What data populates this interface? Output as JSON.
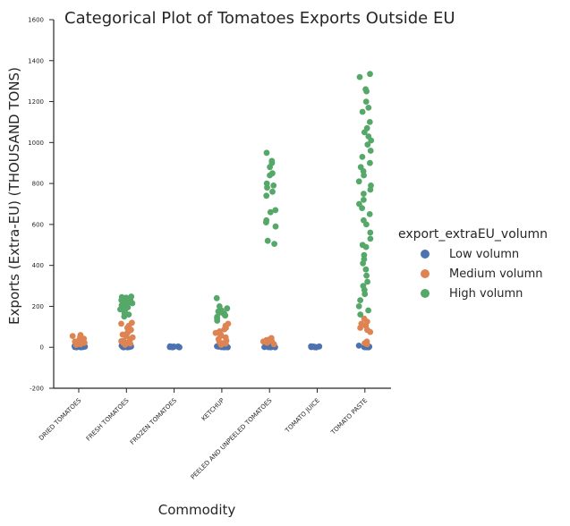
{
  "chart_data": {
    "type": "scatter",
    "title": "Categorical Plot of Tomatoes Exports Outside EU",
    "xlabel": "Commodity",
    "ylabel": "Exports (Extra-EU) (THOUSAND TONS)",
    "ylim": [
      -200,
      1600
    ],
    "yticks": [
      "-200",
      "0",
      "200",
      "400",
      "600",
      "800",
      "1000",
      "1200",
      "1400",
      "1600"
    ],
    "categories": [
      "DRIED TOMATOES",
      "FRESH TOMATOES",
      "FROZEN TOMATOES",
      "KETCHUP",
      "PEELED AND UNPEELED TOMATOES",
      "TOMATO JUICE",
      "TOMATO PASTE"
    ],
    "grid": false,
    "legend_position": "right",
    "legend_title": "export_extraEU_volumn",
    "series": [
      {
        "name": "Low volumn",
        "color": "#4c72b0",
        "points": [
          [
            "DRIED TOMATOES",
            0
          ],
          [
            "DRIED TOMATOES",
            1
          ],
          [
            "DRIED TOMATOES",
            2
          ],
          [
            "DRIED TOMATOES",
            3
          ],
          [
            "DRIED TOMATOES",
            4
          ],
          [
            "DRIED TOMATOES",
            5
          ],
          [
            "DRIED TOMATOES",
            6
          ],
          [
            "DRIED TOMATOES",
            8
          ],
          [
            "DRIED TOMATOES",
            10
          ],
          [
            "DRIED TOMATOES",
            1
          ],
          [
            "DRIED TOMATOES",
            2
          ],
          [
            "DRIED TOMATOES",
            0
          ],
          [
            "DRIED TOMATOES",
            3
          ],
          [
            "DRIED TOMATOES",
            1
          ],
          [
            "FRESH TOMATOES",
            0
          ],
          [
            "FRESH TOMATOES",
            1
          ],
          [
            "FRESH TOMATOES",
            2
          ],
          [
            "FRESH TOMATOES",
            3
          ],
          [
            "FRESH TOMATOES",
            4
          ],
          [
            "FRESH TOMATOES",
            6
          ],
          [
            "FRESH TOMATOES",
            8
          ],
          [
            "FRESH TOMATOES",
            10
          ],
          [
            "FRESH TOMATOES",
            1
          ],
          [
            "FRESH TOMATOES",
            2
          ],
          [
            "FRESH TOMATOES",
            0
          ],
          [
            "FRESH TOMATOES",
            5
          ],
          [
            "FROZEN TOMATOES",
            0
          ],
          [
            "FROZEN TOMATOES",
            1
          ],
          [
            "FROZEN TOMATOES",
            2
          ],
          [
            "FROZEN TOMATOES",
            3
          ],
          [
            "FROZEN TOMATOES",
            4
          ],
          [
            "FROZEN TOMATOES",
            5
          ],
          [
            "FROZEN TOMATOES",
            1
          ],
          [
            "FROZEN TOMATOES",
            2
          ],
          [
            "FROZEN TOMATOES",
            0
          ],
          [
            "FROZEN TOMATOES",
            3
          ],
          [
            "KETCHUP",
            0
          ],
          [
            "KETCHUP",
            1
          ],
          [
            "KETCHUP",
            2
          ],
          [
            "KETCHUP",
            3
          ],
          [
            "KETCHUP",
            4
          ],
          [
            "KETCHUP",
            6
          ],
          [
            "KETCHUP",
            8
          ],
          [
            "KETCHUP",
            10
          ],
          [
            "KETCHUP",
            1
          ],
          [
            "KETCHUP",
            2
          ],
          [
            "KETCHUP",
            0
          ],
          [
            "KETCHUP",
            5
          ],
          [
            "PEELED AND UNPEELED TOMATOES",
            0
          ],
          [
            "PEELED AND UNPEELED TOMATOES",
            1
          ],
          [
            "PEELED AND UNPEELED TOMATOES",
            2
          ],
          [
            "PEELED AND UNPEELED TOMATOES",
            3
          ],
          [
            "PEELED AND UNPEELED TOMATOES",
            4
          ],
          [
            "PEELED AND UNPEELED TOMATOES",
            6
          ],
          [
            "PEELED AND UNPEELED TOMATOES",
            8
          ],
          [
            "PEELED AND UNPEELED TOMATOES",
            1
          ],
          [
            "PEELED AND UNPEELED TOMATOES",
            2
          ],
          [
            "PEELED AND UNPEELED TOMATOES",
            0
          ],
          [
            "TOMATO JUICE",
            0
          ],
          [
            "TOMATO JUICE",
            1
          ],
          [
            "TOMATO JUICE",
            2
          ],
          [
            "TOMATO JUICE",
            3
          ],
          [
            "TOMATO JUICE",
            4
          ],
          [
            "TOMATO JUICE",
            5
          ],
          [
            "TOMATO JUICE",
            1
          ],
          [
            "TOMATO JUICE",
            2
          ],
          [
            "TOMATO JUICE",
            0
          ],
          [
            "TOMATO JUICE",
            3
          ],
          [
            "TOMATO PASTE",
            0
          ],
          [
            "TOMATO PASTE",
            1
          ],
          [
            "TOMATO PASTE",
            2
          ],
          [
            "TOMATO PASTE",
            3
          ],
          [
            "TOMATO PASTE",
            4
          ],
          [
            "TOMATO PASTE",
            6
          ],
          [
            "TOMATO PASTE",
            8
          ],
          [
            "TOMATO PASTE",
            10
          ],
          [
            "TOMATO PASTE",
            1
          ],
          [
            "TOMATO PASTE",
            2
          ],
          [
            "TOMATO PASTE",
            0
          ]
        ]
      },
      {
        "name": "Medium volumn",
        "color": "#dd8452",
        "points": [
          [
            "DRIED TOMATOES",
            12
          ],
          [
            "DRIED TOMATOES",
            18
          ],
          [
            "DRIED TOMATOES",
            22
          ],
          [
            "DRIED TOMATOES",
            28
          ],
          [
            "DRIED TOMATOES",
            35
          ],
          [
            "DRIED TOMATOES",
            42
          ],
          [
            "DRIED TOMATOES",
            50
          ],
          [
            "DRIED TOMATOES",
            55
          ],
          [
            "DRIED TOMATOES",
            60
          ],
          [
            "DRIED TOMATOES",
            15
          ],
          [
            "FRESH TOMATOES",
            12
          ],
          [
            "FRESH TOMATOES",
            18
          ],
          [
            "FRESH TOMATOES",
            25
          ],
          [
            "FRESH TOMATOES",
            32
          ],
          [
            "FRESH TOMATOES",
            40
          ],
          [
            "FRESH TOMATOES",
            48
          ],
          [
            "FRESH TOMATOES",
            55
          ],
          [
            "FRESH TOMATOES",
            62
          ],
          [
            "FRESH TOMATOES",
            70
          ],
          [
            "FRESH TOMATOES",
            78
          ],
          [
            "FRESH TOMATOES",
            85
          ],
          [
            "FRESH TOMATOES",
            95
          ],
          [
            "FRESH TOMATOES",
            105
          ],
          [
            "FRESH TOMATOES",
            115
          ],
          [
            "FRESH TOMATOES",
            120
          ],
          [
            "FRESH TOMATOES",
            30
          ],
          [
            "FRESH TOMATOES",
            22
          ],
          [
            "KETCHUP",
            12
          ],
          [
            "KETCHUP",
            18
          ],
          [
            "KETCHUP",
            25
          ],
          [
            "KETCHUP",
            32
          ],
          [
            "KETCHUP",
            40
          ],
          [
            "KETCHUP",
            48
          ],
          [
            "KETCHUP",
            55
          ],
          [
            "KETCHUP",
            62
          ],
          [
            "KETCHUP",
            70
          ],
          [
            "KETCHUP",
            78
          ],
          [
            "KETCHUP",
            88
          ],
          [
            "KETCHUP",
            95
          ],
          [
            "KETCHUP",
            105
          ],
          [
            "KETCHUP",
            115
          ],
          [
            "KETCHUP",
            20
          ],
          [
            "PEELED AND UNPEELED TOMATOES",
            15
          ],
          [
            "PEELED AND UNPEELED TOMATOES",
            22
          ],
          [
            "PEELED AND UNPEELED TOMATOES",
            28
          ],
          [
            "PEELED AND UNPEELED TOMATOES",
            35
          ],
          [
            "PEELED AND UNPEELED TOMATOES",
            40
          ],
          [
            "PEELED AND UNPEELED TOMATOES",
            45
          ],
          [
            "PEELED AND UNPEELED TOMATOES",
            30
          ],
          [
            "TOMATO PASTE",
            15
          ],
          [
            "TOMATO PASTE",
            20
          ],
          [
            "TOMATO PASTE",
            28
          ],
          [
            "TOMATO PASTE",
            75
          ],
          [
            "TOMATO PASTE",
            85
          ],
          [
            "TOMATO PASTE",
            95
          ],
          [
            "TOMATO PASTE",
            105
          ],
          [
            "TOMATO PASTE",
            115
          ],
          [
            "TOMATO PASTE",
            125
          ],
          [
            "TOMATO PASTE",
            140
          ]
        ]
      },
      {
        "name": "High volumn",
        "color": "#55a868",
        "points": [
          [
            "FRESH TOMATOES",
            150
          ],
          [
            "FRESH TOMATOES",
            160
          ],
          [
            "FRESH TOMATOES",
            170
          ],
          [
            "FRESH TOMATOES",
            180
          ],
          [
            "FRESH TOMATOES",
            190
          ],
          [
            "FRESH TOMATOES",
            200
          ],
          [
            "FRESH TOMATOES",
            205
          ],
          [
            "FRESH TOMATOES",
            210
          ],
          [
            "FRESH TOMATOES",
            215
          ],
          [
            "FRESH TOMATOES",
            220
          ],
          [
            "FRESH TOMATOES",
            225
          ],
          [
            "FRESH TOMATOES",
            228
          ],
          [
            "FRESH TOMATOES",
            232
          ],
          [
            "FRESH TOMATOES",
            235
          ],
          [
            "FRESH TOMATOES",
            238
          ],
          [
            "FRESH TOMATOES",
            242
          ],
          [
            "FRESH TOMATOES",
            245
          ],
          [
            "FRESH TOMATOES",
            248
          ],
          [
            "FRESH TOMATOES",
            165
          ],
          [
            "FRESH TOMATOES",
            185
          ],
          [
            "FRESH TOMATOES",
            195
          ],
          [
            "FRESH TOMATOES",
            218
          ],
          [
            "FRESH TOMATOES",
            230
          ],
          [
            "KETCHUP",
            130
          ],
          [
            "KETCHUP",
            140
          ],
          [
            "KETCHUP",
            148
          ],
          [
            "KETCHUP",
            155
          ],
          [
            "KETCHUP",
            160
          ],
          [
            "KETCHUP",
            165
          ],
          [
            "KETCHUP",
            170
          ],
          [
            "KETCHUP",
            175
          ],
          [
            "KETCHUP",
            180
          ],
          [
            "KETCHUP",
            190
          ],
          [
            "KETCHUP",
            200
          ],
          [
            "KETCHUP",
            240
          ],
          [
            "PEELED AND UNPEELED TOMATOES",
            505
          ],
          [
            "PEELED AND UNPEELED TOMATOES",
            520
          ],
          [
            "PEELED AND UNPEELED TOMATOES",
            590
          ],
          [
            "PEELED AND UNPEELED TOMATOES",
            610
          ],
          [
            "PEELED AND UNPEELED TOMATOES",
            620
          ],
          [
            "PEELED AND UNPEELED TOMATOES",
            660
          ],
          [
            "PEELED AND UNPEELED TOMATOES",
            670
          ],
          [
            "PEELED AND UNPEELED TOMATOES",
            740
          ],
          [
            "PEELED AND UNPEELED TOMATOES",
            760
          ],
          [
            "PEELED AND UNPEELED TOMATOES",
            780
          ],
          [
            "PEELED AND UNPEELED TOMATOES",
            790
          ],
          [
            "PEELED AND UNPEELED TOMATOES",
            800
          ],
          [
            "PEELED AND UNPEELED TOMATOES",
            840
          ],
          [
            "PEELED AND UNPEELED TOMATOES",
            850
          ],
          [
            "PEELED AND UNPEELED TOMATOES",
            880
          ],
          [
            "PEELED AND UNPEELED TOMATOES",
            900
          ],
          [
            "PEELED AND UNPEELED TOMATOES",
            910
          ],
          [
            "PEELED AND UNPEELED TOMATOES",
            950
          ],
          [
            "TOMATO PASTE",
            160
          ],
          [
            "TOMATO PASTE",
            180
          ],
          [
            "TOMATO PASTE",
            200
          ],
          [
            "TOMATO PASTE",
            230
          ],
          [
            "TOMATO PASTE",
            260
          ],
          [
            "TOMATO PASTE",
            280
          ],
          [
            "TOMATO PASTE",
            300
          ],
          [
            "TOMATO PASTE",
            320
          ],
          [
            "TOMATO PASTE",
            350
          ],
          [
            "TOMATO PASTE",
            380
          ],
          [
            "TOMATO PASTE",
            410
          ],
          [
            "TOMATO PASTE",
            430
          ],
          [
            "TOMATO PASTE",
            450
          ],
          [
            "TOMATO PASTE",
            490
          ],
          [
            "TOMATO PASTE",
            500
          ],
          [
            "TOMATO PASTE",
            530
          ],
          [
            "TOMATO PASTE",
            560
          ],
          [
            "TOMATO PASTE",
            600
          ],
          [
            "TOMATO PASTE",
            620
          ],
          [
            "TOMATO PASTE",
            650
          ],
          [
            "TOMATO PASTE",
            680
          ],
          [
            "TOMATO PASTE",
            700
          ],
          [
            "TOMATO PASTE",
            720
          ],
          [
            "TOMATO PASTE",
            750
          ],
          [
            "TOMATO PASTE",
            770
          ],
          [
            "TOMATO PASTE",
            790
          ],
          [
            "TOMATO PASTE",
            810
          ],
          [
            "TOMATO PASTE",
            840
          ],
          [
            "TOMATO PASTE",
            860
          ],
          [
            "TOMATO PASTE",
            880
          ],
          [
            "TOMATO PASTE",
            900
          ],
          [
            "TOMATO PASTE",
            930
          ],
          [
            "TOMATO PASTE",
            960
          ],
          [
            "TOMATO PASTE",
            990
          ],
          [
            "TOMATO PASTE",
            1010
          ],
          [
            "TOMATO PASTE",
            1030
          ],
          [
            "TOMATO PASTE",
            1050
          ],
          [
            "TOMATO PASTE",
            1070
          ],
          [
            "TOMATO PASTE",
            1100
          ],
          [
            "TOMATO PASTE",
            1150
          ],
          [
            "TOMATO PASTE",
            1170
          ],
          [
            "TOMATO PASTE",
            1200
          ],
          [
            "TOMATO PASTE",
            1250
          ],
          [
            "TOMATO PASTE",
            1260
          ],
          [
            "TOMATO PASTE",
            1320
          ],
          [
            "TOMATO PASTE",
            1335
          ]
        ]
      }
    ]
  }
}
